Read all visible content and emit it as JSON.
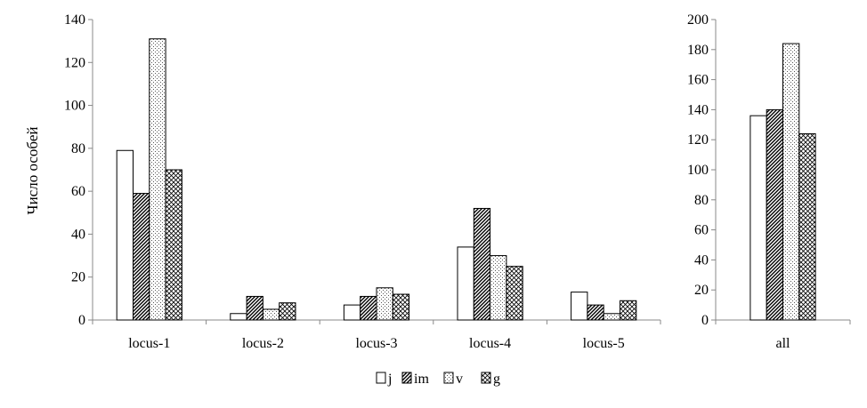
{
  "chart_data": [
    {
      "type": "bar",
      "ylabel": "Число особей",
      "ylim": [
        0,
        140
      ],
      "yticks": [
        0,
        20,
        40,
        60,
        80,
        100,
        120,
        140
      ],
      "categories": [
        "locus-1",
        "locus-2",
        "locus-3",
        "locus-4",
        "locus-5"
      ],
      "series": [
        {
          "name": "j",
          "values": [
            79,
            3,
            7,
            34,
            13
          ]
        },
        {
          "name": "im",
          "values": [
            59,
            11,
            11,
            52,
            7
          ]
        },
        {
          "name": "v",
          "values": [
            131,
            5,
            15,
            30,
            3
          ]
        },
        {
          "name": "g",
          "values": [
            70,
            8,
            12,
            25,
            9
          ]
        }
      ],
      "grid": false
    },
    {
      "type": "bar",
      "ylim": [
        0,
        200
      ],
      "yticks": [
        0,
        20,
        40,
        60,
        80,
        100,
        120,
        140,
        160,
        180,
        200
      ],
      "categories": [
        "all"
      ],
      "series": [
        {
          "name": "j",
          "values": [
            136
          ]
        },
        {
          "name": "im",
          "values": [
            140
          ]
        },
        {
          "name": "v",
          "values": [
            184
          ]
        },
        {
          "name": "g",
          "values": [
            124
          ]
        }
      ],
      "grid": false
    }
  ],
  "legend": {
    "placement": "bottom",
    "items": [
      {
        "label": "j",
        "pattern": "white"
      },
      {
        "label": "im",
        "pattern": "diagonal-hatch"
      },
      {
        "label": "v",
        "pattern": "dots"
      },
      {
        "label": "g",
        "pattern": "crosshatch"
      }
    ]
  }
}
